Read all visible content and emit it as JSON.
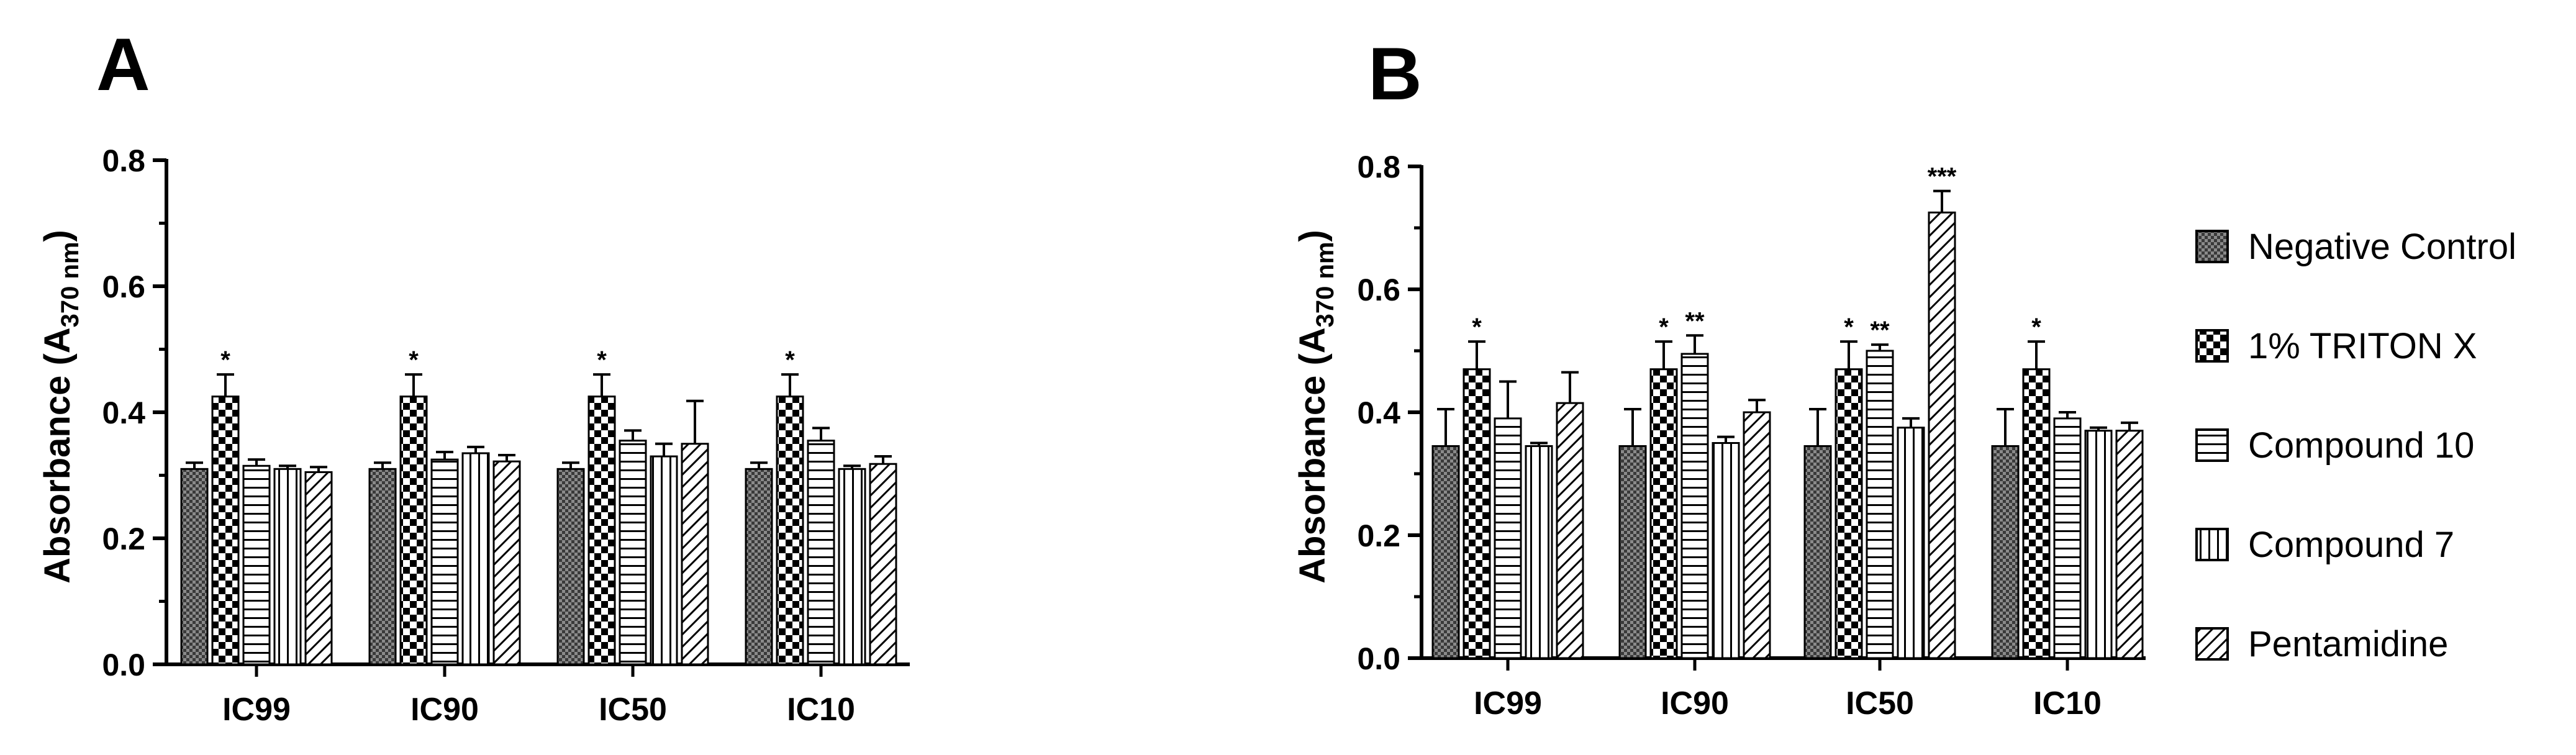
{
  "legend": {
    "items": [
      {
        "label": "Negative Control",
        "pattern": "checker-dark"
      },
      {
        "label": "1% TRITON X",
        "pattern": "checker-bold"
      },
      {
        "label": "Compound 10",
        "pattern": "horizontal"
      },
      {
        "label": "Compound 7",
        "pattern": "vertical"
      },
      {
        "label": "Pentamidine",
        "pattern": "diagonal"
      }
    ]
  },
  "chart_data": [
    {
      "type": "bar",
      "panel": "A",
      "ylabel_main": "Absorbance (A",
      "ylabel_sub": "370 nm",
      "ylabel_end": ")",
      "ylim": [
        0.0,
        0.8
      ],
      "yticks": [
        "0.0",
        "0.2",
        "0.4",
        "0.6",
        "0.8"
      ],
      "categories": [
        "IC99",
        "IC90",
        "IC50",
        "IC10"
      ],
      "series": [
        {
          "name": "Negative Control",
          "values": [
            0.31,
            0.31,
            0.31,
            0.31
          ],
          "errors": [
            0.01,
            0.01,
            0.01,
            0.01
          ],
          "sig": [
            "",
            "",
            "",
            ""
          ]
        },
        {
          "name": "1% TRITON X",
          "values": [
            0.425,
            0.425,
            0.425,
            0.425
          ],
          "errors": [
            0.035,
            0.035,
            0.035,
            0.035
          ],
          "sig": [
            "*",
            "*",
            "*",
            "*"
          ]
        },
        {
          "name": "Compound 10",
          "values": [
            0.315,
            0.325,
            0.355,
            0.355
          ],
          "errors": [
            0.01,
            0.012,
            0.016,
            0.02
          ],
          "sig": [
            "",
            "",
            "",
            ""
          ]
        },
        {
          "name": "Compound 7",
          "values": [
            0.31,
            0.335,
            0.33,
            0.31
          ],
          "errors": [
            0.005,
            0.01,
            0.02,
            0.005
          ],
          "sig": [
            "",
            "",
            "",
            ""
          ]
        },
        {
          "name": "Pentamidine",
          "values": [
            0.305,
            0.322,
            0.35,
            0.318
          ],
          "errors": [
            0.008,
            0.01,
            0.068,
            0.012
          ],
          "sig": [
            "",
            "",
            "",
            ""
          ]
        }
      ],
      "grid": false,
      "legend": "none"
    },
    {
      "type": "bar",
      "panel": "B",
      "ylabel_main": "Absorbance (A",
      "ylabel_sub": "370 nm",
      "ylabel_end": ")",
      "ylim": [
        0.0,
        0.8
      ],
      "yticks": [
        "0.0",
        "0.2",
        "0.4",
        "0.6",
        "0.8"
      ],
      "categories": [
        "IC99",
        "IC90",
        "IC50",
        "IC10"
      ],
      "series": [
        {
          "name": "Negative Control",
          "values": [
            0.345,
            0.345,
            0.345,
            0.345
          ],
          "errors": [
            0.06,
            0.06,
            0.06,
            0.06
          ],
          "sig": [
            "",
            "",
            "",
            ""
          ]
        },
        {
          "name": "1% TRITON X",
          "values": [
            0.47,
            0.47,
            0.47,
            0.47
          ],
          "errors": [
            0.045,
            0.045,
            0.045,
            0.045
          ],
          "sig": [
            "*",
            "*",
            "*",
            "*"
          ]
        },
        {
          "name": "Compound 10",
          "values": [
            0.39,
            0.495,
            0.5,
            0.39
          ],
          "errors": [
            0.06,
            0.03,
            0.01,
            0.01
          ],
          "sig": [
            "",
            "**",
            "**",
            ""
          ]
        },
        {
          "name": "Compound 7",
          "values": [
            0.345,
            0.35,
            0.375,
            0.37
          ],
          "errors": [
            0.005,
            0.01,
            0.015,
            0.005
          ],
          "sig": [
            "",
            "",
            "",
            ""
          ]
        },
        {
          "name": "Pentamidine",
          "values": [
            0.415,
            0.4,
            0.725,
            0.37
          ],
          "errors": [
            0.05,
            0.02,
            0.035,
            0.013
          ],
          "sig": [
            "",
            "",
            "***",
            ""
          ]
        }
      ],
      "grid": false,
      "legend": "right"
    }
  ]
}
